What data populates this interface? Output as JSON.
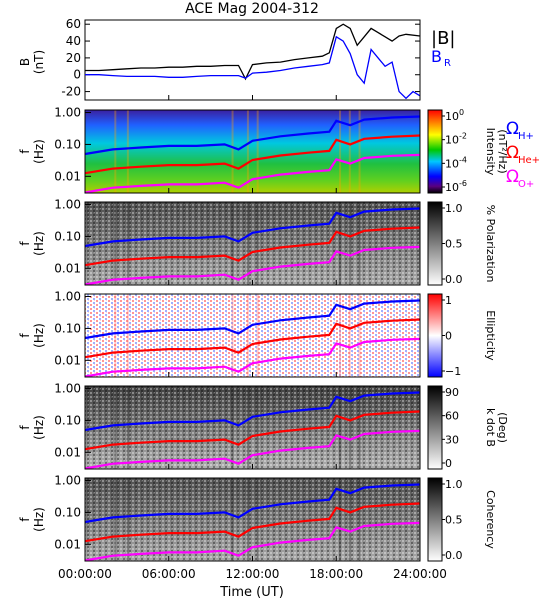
{
  "title": "ACE Mag 2004-312",
  "xlabel": "Time (UT)",
  "x_tick_labels": [
    "00:00:00",
    "06:00:00",
    "12:00:00",
    "18:00:00",
    "24:00:00"
  ],
  "colors": {
    "b_total": "#000000",
    "b_r": "#0000ff",
    "h_plus": "#0000ff",
    "he_plus": "#ff0000",
    "o_plus": "#ff00ff",
    "axes": "#000000",
    "background": "#ffffff"
  },
  "top_panel": {
    "ylabel": "B",
    "ylabel_unit": "(nT)",
    "legend": [
      "|B|",
      "B"
    ],
    "legend_sub": [
      "",
      "R"
    ]
  },
  "freq_labels": [
    "1.00",
    "0.10",
    "0.01"
  ],
  "freq_ylabel": "f",
  "freq_unit": "(Hz)",
  "ion_legend": [
    {
      "main": "Ω",
      "sub": "H+",
      "color": "#0000ff"
    },
    {
      "main": "Ω",
      "sub": "He+",
      "color": "#ff0000"
    },
    {
      "main": "Ω",
      "sub": "O+",
      "color": "#ff00ff"
    }
  ],
  "panels": [
    {
      "id": "intensity",
      "colorbar": "rainbow",
      "colorbar_label": "Intensity",
      "colorbar_label2": "(nT²/Hz)",
      "ticks": [
        {
          "base": "10",
          "exp": "0"
        },
        {
          "base": "10",
          "exp": "-2"
        },
        {
          "base": "10",
          "exp": "-4"
        },
        {
          "base": "10",
          "exp": "-6"
        }
      ]
    },
    {
      "id": "polarization",
      "colorbar": "gray",
      "colorbar_label": "% Polarization",
      "colorbar_label2": "",
      "ticks": [
        {
          "base": "1.0",
          "exp": ""
        },
        {
          "base": "0.5",
          "exp": ""
        },
        {
          "base": "0.0",
          "exp": ""
        }
      ]
    },
    {
      "id": "ellipticity",
      "colorbar": "bwr",
      "colorbar_label": "Ellipticity",
      "colorbar_label2": "",
      "ticks": [
        {
          "base": "1",
          "exp": ""
        },
        {
          "base": "0",
          "exp": ""
        },
        {
          "base": "−1",
          "exp": ""
        }
      ]
    },
    {
      "id": "kdotb",
      "colorbar": "gray",
      "colorbar_label": "k dot B",
      "colorbar_label2": "(Deg)",
      "ticks": [
        {
          "base": "90",
          "exp": ""
        },
        {
          "base": "60",
          "exp": ""
        },
        {
          "base": "30",
          "exp": ""
        },
        {
          "base": "0",
          "exp": ""
        }
      ]
    },
    {
      "id": "coherency",
      "colorbar": "gray",
      "colorbar_label": "Coherency",
      "colorbar_label2": "",
      "ticks": [
        {
          "base": "1.0",
          "exp": ""
        },
        {
          "base": "0.5",
          "exp": ""
        },
        {
          "base": "0.0",
          "exp": ""
        }
      ]
    }
  ],
  "chart_data": [
    {
      "type": "line",
      "title": "ACE Mag 2004-312",
      "xlabel": "",
      "ylabel": "B (nT)",
      "xlim": [
        0,
        24
      ],
      "ylim": [
        -30,
        65
      ],
      "y_ticks": [
        60,
        40,
        20,
        0,
        -20
      ],
      "x_unit_hours": true,
      "series": [
        {
          "name": "|B|",
          "x": [
            0,
            1,
            2,
            3,
            4,
            5,
            6,
            7,
            8,
            9,
            10,
            11,
            11.5,
            12,
            13,
            14,
            15,
            16,
            17,
            17.5,
            18,
            18.5,
            19,
            19.5,
            20,
            20.5,
            21,
            21.5,
            22,
            22.5,
            23,
            24
          ],
          "y": [
            5,
            5,
            6,
            7,
            8,
            8,
            9,
            9,
            10,
            10,
            11,
            11,
            -5,
            12,
            14,
            15,
            18,
            20,
            22,
            26,
            55,
            60,
            55,
            35,
            45,
            55,
            50,
            45,
            40,
            46,
            48,
            46
          ]
        },
        {
          "name": "B",
          "x": [
            0,
            1,
            2,
            3,
            4,
            5,
            6,
            7,
            8,
            9,
            10,
            11,
            11.5,
            12,
            13,
            14,
            15,
            16,
            17,
            17.5,
            18,
            18.5,
            19,
            19.5,
            20,
            20.5,
            21,
            21.5,
            22,
            22.5,
            23,
            23.5,
            24
          ],
          "y": [
            0,
            0,
            -1,
            -2,
            -2,
            -2,
            -3,
            -3,
            -2,
            -1,
            -1,
            -1,
            -4,
            2,
            3,
            5,
            8,
            10,
            12,
            14,
            45,
            40,
            25,
            0,
            -10,
            30,
            20,
            10,
            15,
            -20,
            -28,
            -20,
            -25
          ]
        }
      ]
    },
    {
      "type": "line",
      "title": "",
      "xlabel": "Time (UT)",
      "ylabel": "f (Hz)",
      "y_scale": "log",
      "xlim": [
        0,
        24
      ],
      "ylim": [
        0.003,
        1.2
      ],
      "series": [
        {
          "name": "ΩH+",
          "x": [
            0,
            2,
            4,
            6,
            8,
            10,
            11,
            12,
            14,
            16,
            17.5,
            18,
            19,
            20,
            22,
            24
          ],
          "y": [
            0.05,
            0.07,
            0.08,
            0.09,
            0.09,
            0.1,
            0.07,
            0.13,
            0.18,
            0.22,
            0.25,
            0.55,
            0.4,
            0.6,
            0.7,
            0.75
          ]
        },
        {
          "name": "ΩHe+",
          "x": [
            0,
            2,
            4,
            6,
            8,
            10,
            11,
            12,
            14,
            16,
            17.5,
            18,
            19,
            20,
            22,
            24
          ],
          "y": [
            0.0125,
            0.0175,
            0.02,
            0.0225,
            0.0225,
            0.025,
            0.0175,
            0.0325,
            0.045,
            0.055,
            0.0625,
            0.14,
            0.1,
            0.15,
            0.175,
            0.19
          ]
        },
        {
          "name": "ΩO+",
          "x": [
            0,
            2,
            4,
            6,
            8,
            10,
            11,
            12,
            14,
            16,
            17.5,
            18,
            19,
            20,
            22,
            24
          ],
          "y": [
            0.0031,
            0.0044,
            0.005,
            0.0056,
            0.0056,
            0.0063,
            0.0044,
            0.0081,
            0.0113,
            0.0138,
            0.0156,
            0.034,
            0.025,
            0.0375,
            0.044,
            0.047
          ]
        }
      ]
    }
  ]
}
